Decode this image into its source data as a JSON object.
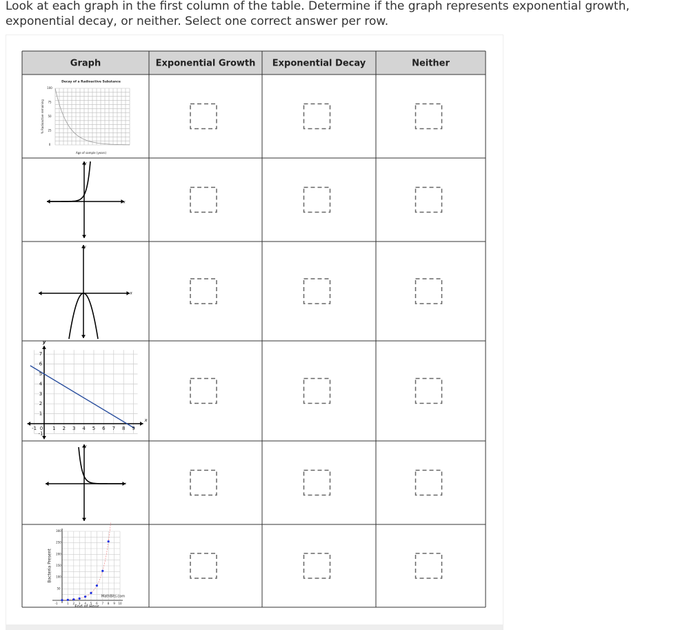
{
  "instructions": "Look at each graph in the first column of the table.  Determine if the graph represents exponential growth, exponential decay, or neither.  Select one correct answer per row.",
  "table": {
    "headers": [
      "Graph",
      "Exponential Growth",
      "Exponential Decay",
      "Neither"
    ]
  },
  "graphs": [
    {
      "title": "Decay of a Radioactive Substance",
      "y_label": "% Radioactive remaining",
      "x_label": "Age of sample (years)",
      "yticks": [
        "100",
        "75",
        "50",
        "25",
        "0"
      ]
    },
    {
      "y": "y",
      "x": "x"
    },
    {
      "y": "y",
      "x": "x"
    },
    {
      "y": "y",
      "x": "x",
      "yticks": [
        "7",
        "6",
        "5",
        "4",
        "3",
        "2",
        "1",
        "-1"
      ],
      "xticks": [
        "-1",
        "0",
        "1",
        "2",
        "3",
        "4",
        "5",
        "6",
        "7",
        "8",
        "9"
      ]
    },
    {
      "y": "y",
      "x": "x"
    },
    {
      "y_label": "Bacteria Present",
      "x_label": "End of Hour",
      "credit": "MathBits.com",
      "yticks": [
        "300",
        "250",
        "200",
        "150",
        "100",
        "50"
      ],
      "xticks": [
        "-1",
        "1",
        "2",
        "3",
        "4",
        "5",
        "6",
        "7",
        "8",
        "9",
        "10"
      ]
    }
  ]
}
